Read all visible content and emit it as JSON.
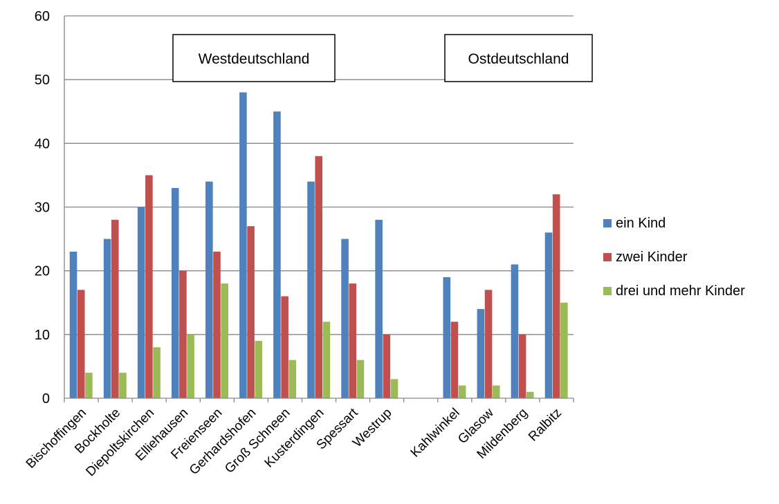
{
  "chart_data": {
    "type": "bar",
    "categories": [
      "Bischoffingen",
      "Bockholte",
      "Diepoltskirchen",
      "Elliehausen",
      "Freienseen",
      "Gerhardshofen",
      "Groß Schneen",
      "Kusterdingen",
      "Spessart",
      "Westrup",
      "",
      "Kahlwinkel",
      "Glasow",
      "Mildenberg",
      "Ralbitz"
    ],
    "series": [
      {
        "name": "ein Kind",
        "color": "#4F81BD",
        "values": [
          23,
          25,
          30,
          33,
          34,
          48,
          45,
          34,
          25,
          28,
          null,
          19,
          14,
          21,
          26
        ]
      },
      {
        "name": "zwei Kinder",
        "color": "#C0504D",
        "values": [
          17,
          28,
          35,
          20,
          23,
          27,
          16,
          38,
          18,
          10,
          null,
          12,
          17,
          10,
          32
        ]
      },
      {
        "name": "drei und mehr Kinder",
        "color": "#9BBB59",
        "values": [
          4,
          4,
          8,
          10,
          18,
          9,
          6,
          12,
          6,
          3,
          null,
          2,
          2,
          1,
          15
        ]
      }
    ],
    "ylim": [
      0,
      60
    ],
    "yticks": [
      0,
      10,
      20,
      30,
      40,
      50,
      60
    ],
    "grid": true,
    "legend_position": "right",
    "annotations": [
      "Westdeutschland",
      "Ostdeutschland"
    ]
  }
}
